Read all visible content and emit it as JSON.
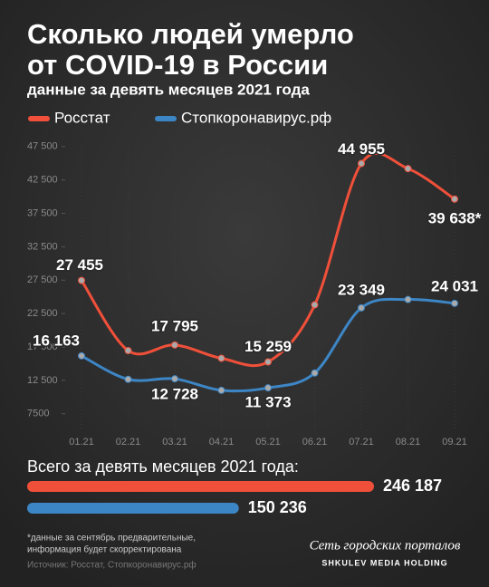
{
  "chart_data": [
    {
      "type": "line",
      "title": "Сколько людей умерло от COVID-19 в России",
      "subtitle": "данные за девять месяцев 2021 года",
      "categories": [
        "01.21",
        "02.21",
        "03.21",
        "04.21",
        "05.21",
        "06.21",
        "07.21",
        "08.21",
        "09.21"
      ],
      "series": [
        {
          "name": "Росстат",
          "color": "#f0503a",
          "values": [
            27455,
            16950,
            17795,
            15800,
            15259,
            23800,
            44955,
            44200,
            39638
          ],
          "value_labels": [
            "27 455",
            null,
            "17 795",
            null,
            "15 259",
            null,
            "44 955",
            null,
            "39 638*"
          ]
        },
        {
          "name": "Стопкоронавирус.рф",
          "color": "#3d86c6",
          "values": [
            16163,
            12650,
            12728,
            11000,
            11373,
            13600,
            23349,
            24600,
            24031
          ],
          "value_labels": [
            "16 163",
            null,
            "12 728",
            null,
            "11 373",
            null,
            "23 349",
            null,
            "24 031"
          ]
        }
      ],
      "ylim": [
        5700,
        49100
      ],
      "yticks": [
        7500,
        {
          "value": 12500,
          "label": "12 500"
        },
        {
          "value": 17500,
          "label": "17 500"
        },
        {
          "value": 22500,
          "label": "22 500"
        },
        {
          "value": 27500,
          "label": "27 500"
        },
        {
          "value": 32500,
          "label": "32 500"
        },
        {
          "value": 37500,
          "label": "37 500"
        },
        {
          "value": 42500,
          "label": "42 500"
        },
        {
          "value": 47500,
          "label": "47 500"
        }
      ],
      "grid": false
    },
    {
      "type": "hbar",
      "title": "Всего за девять месяцев 2021 года:",
      "series": [
        {
          "name": "Росстат",
          "color": "#f0503a",
          "values": [
            246187
          ],
          "value_labels": [
            "246 187"
          ]
        },
        {
          "name": "Стопкоронавирус.рф",
          "color": "#3d86c6",
          "values": [
            150236
          ],
          "value_labels": [
            "150 236"
          ]
        }
      ]
    }
  ],
  "footer": {
    "notes": [
      "*данные за сентябрь предварительные,",
      "информация будет скорректирована"
    ],
    "source": "Источник: Росстат, Стопкоронавирус.рф",
    "brand": "Сеть городских порталов",
    "brand_sub": "SHKULEV MEDIA HOLDING"
  }
}
